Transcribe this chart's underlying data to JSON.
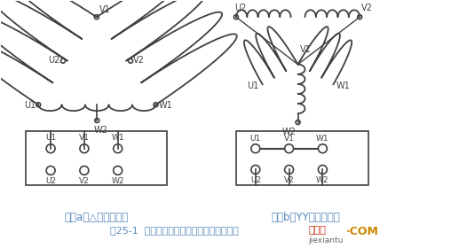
{
  "bg_color": "#ffffff",
  "line_color": "#404040",
  "text_color": "#404040",
  "blue_text_color": "#5588bb",
  "red_text_color": "#cc2200",
  "green_text_color": "#338833",
  "orange_text_color": "#bb6600",
  "gray_text_color": "#888888",
  "title_a": "图（a）△接（低速）",
  "title_b": "图（b）YY接（高速）",
  "bottom_title": "图25-1  三相双速异步电动机定子绕组接线图",
  "watermark1": "接线图",
  "watermark2": "·COM",
  "watermark3": "jiexiantu"
}
